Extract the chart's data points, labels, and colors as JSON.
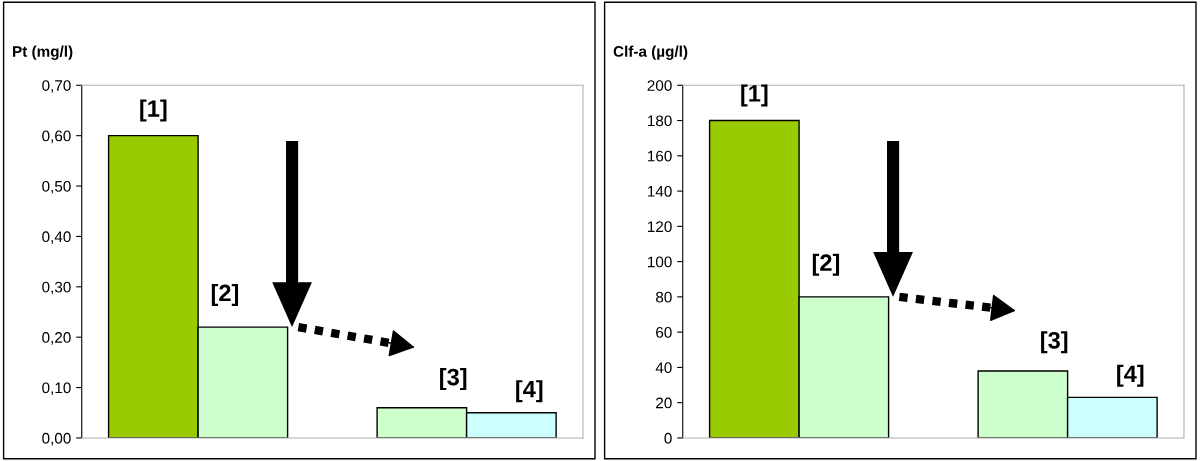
{
  "chart_data": [
    {
      "type": "bar",
      "ylabel": "Pt (mg/l)",
      "categories": [
        null,
        null,
        null,
        null,
        null
      ],
      "values": [
        0.6,
        0.22,
        null,
        0.06,
        0.05
      ],
      "colors": [
        "#99cc00",
        "#ccffcc",
        "#ffffff",
        "#ccffcc",
        "#ccffff"
      ],
      "ylim": [
        0,
        0.7
      ],
      "yticks": [
        {
          "value": 0,
          "label": "0,00"
        },
        {
          "value": 0.1,
          "label": "0,10"
        },
        {
          "value": 0.2,
          "label": "0,20"
        },
        {
          "value": 0.3,
          "label": "0,30"
        },
        {
          "value": 0.4,
          "label": "0,40"
        },
        {
          "value": 0.5,
          "label": "0,50"
        },
        {
          "value": 0.6,
          "label": "0,60"
        },
        {
          "value": 0.7,
          "label": "0,70"
        }
      ],
      "annotations": [
        "[1]",
        "[2]",
        "[3]",
        "[4]"
      ],
      "grid": false,
      "legend": false
    },
    {
      "type": "bar",
      "ylabel": "Clf-a (µg/l)",
      "categories": [
        null,
        null,
        null,
        null,
        null
      ],
      "values": [
        180,
        80,
        null,
        38,
        23
      ],
      "colors": [
        "#99cc00",
        "#ccffcc",
        "#ffffff",
        "#ccffcc",
        "#ccffff"
      ],
      "ylim": [
        0,
        200
      ],
      "yticks": [
        0,
        20,
        40,
        60,
        80,
        100,
        120,
        140,
        160,
        180,
        200
      ],
      "annotations": [
        "[1]",
        "[2]",
        "[3]",
        "[4]"
      ],
      "grid": false,
      "legend": false
    }
  ]
}
